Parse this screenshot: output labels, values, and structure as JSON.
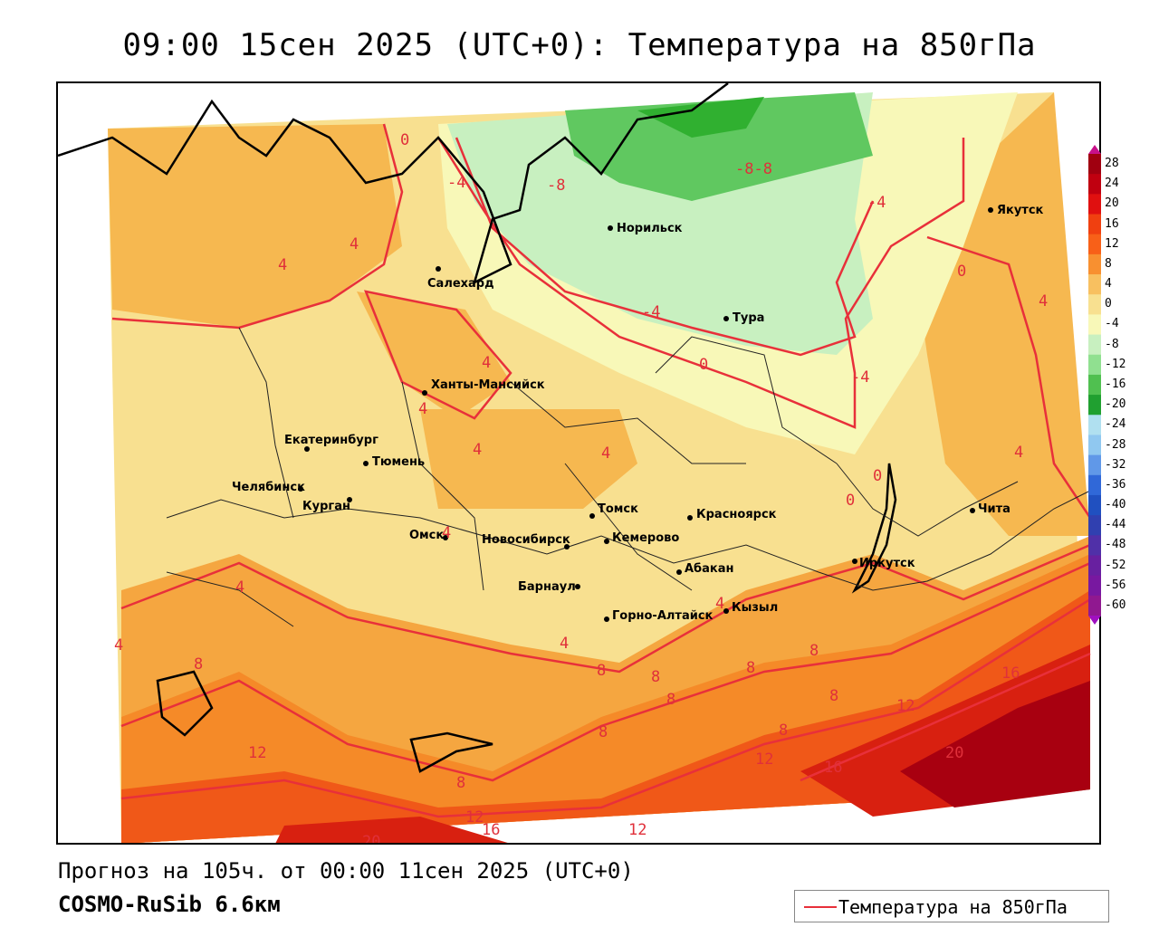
{
  "title": "09:00 15сен 2025 (UTC+0): Температура на 850гПа",
  "forecast_line": "Прогноз на 105ч. от 00:00 11сен 2025 (UTC+0)",
  "model_line": "COSMO-RuSib 6.6км",
  "legend_label": "Температура на 850гПа",
  "legend_color": "#e8303a",
  "colorbar": {
    "ticks": [
      "28",
      "24",
      "20",
      "16",
      "12",
      "8",
      "4",
      "0",
      "-4",
      "-8",
      "-12",
      "-16",
      "-20",
      "-24",
      "-28",
      "-32",
      "-36",
      "-40",
      "-44",
      "-48",
      "-52",
      "-56",
      "-60"
    ],
    "colors": [
      "#a00010",
      "#c00010",
      "#e01010",
      "#f04010",
      "#f86018",
      "#f89030",
      "#f8c060",
      "#f8e090",
      "#f8f8b8",
      "#c8f0c0",
      "#90e090",
      "#50c050",
      "#20a030",
      "#b0e0f0",
      "#90c8f0",
      "#6098e8",
      "#3068d8",
      "#2050c0",
      "#3040b0",
      "#5030a8",
      "#6820a0",
      "#7818a0",
      "#901890"
    ]
  },
  "cities": [
    {
      "name": "Якутск"
    },
    {
      "name": "Норильск"
    },
    {
      "name": "Салехард"
    },
    {
      "name": "Тура"
    },
    {
      "name": "Ханты-Мансийск"
    },
    {
      "name": "Екатеринбург"
    },
    {
      "name": "Тюмень"
    },
    {
      "name": "Челябинск"
    },
    {
      "name": "Курган"
    },
    {
      "name": "Омск"
    },
    {
      "name": "Новосибирск"
    },
    {
      "name": "Томск"
    },
    {
      "name": "Кемерово"
    },
    {
      "name": "Красноярск"
    },
    {
      "name": "Абакан"
    },
    {
      "name": "Барнаул"
    },
    {
      "name": "Горно-Алтайск"
    },
    {
      "name": "Кызыл"
    },
    {
      "name": "Иркутск"
    },
    {
      "name": "Чита"
    }
  ],
  "contour_labels": [
    "0",
    "-4",
    "-8",
    "-8-8",
    "-4",
    "4",
    "4",
    "0",
    "4",
    "-4",
    "0",
    "-4",
    "4",
    "4",
    "4",
    "4",
    "0",
    "0",
    "4",
    "4",
    "4",
    "4",
    "4",
    "4",
    "8",
    "8",
    "8",
    "8",
    "8",
    "8",
    "8",
    "8",
    "8",
    "16",
    "12",
    "20",
    "12",
    "16",
    "12",
    "8",
    "12",
    "16",
    "12",
    "20"
  ]
}
